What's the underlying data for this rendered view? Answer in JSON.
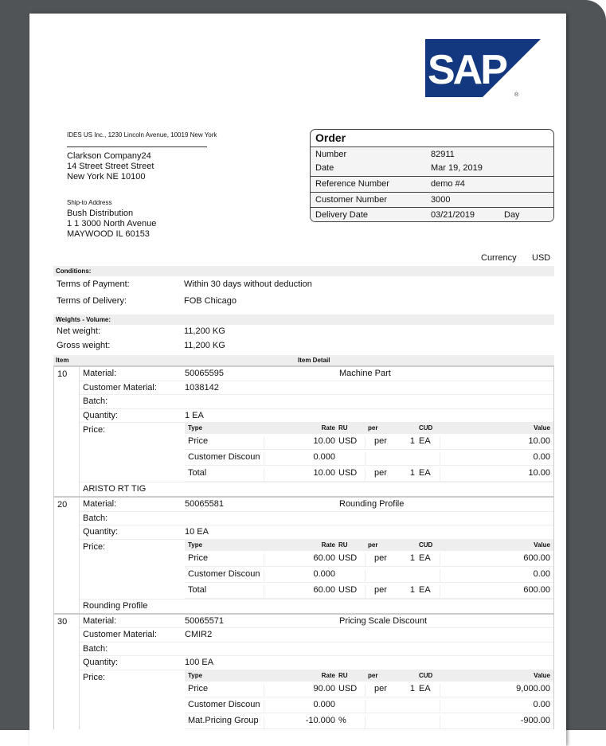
{
  "logo": {
    "text": "SAP",
    "brand_color": "#14387f"
  },
  "sender": "IDES US Inc., 1230 Lincoln Avenue, 10019 New York",
  "address": [
    "Clarkson Company24",
    "14 Street Street Street",
    "New York NE  10100"
  ],
  "ship_to": {
    "label": "Ship-to Address",
    "lines": [
      "Bush Distribution",
      "1 1 3000 North Avenue",
      "MAYWOOD IL  60153"
    ]
  },
  "order": {
    "title": "Order",
    "number_label": "Number",
    "number": "82911",
    "date_label": "Date",
    "date": "Mar 19, 2019",
    "reference_label": "Reference Number",
    "reference": "demo #4",
    "customer_label": "Customer Number",
    "customer": "3000",
    "delivery_label": "Delivery Date",
    "delivery": "03/21/2019",
    "delivery_unit": "Day"
  },
  "currency": {
    "label": "Currency",
    "value": "USD"
  },
  "conditions": {
    "header": "Conditions:",
    "payment_label": "Terms of Payment:",
    "payment": "Within  30 days without deduction",
    "delivery_label": "Terms of Delivery:",
    "delivery": "FOB   Chicago"
  },
  "weights": {
    "header": "Weights - Volume:",
    "net_label": "Net weight:",
    "net": "11,200  KG",
    "gross_label": "Gross weight:",
    "gross": "11,200  KG"
  },
  "items_header": {
    "item": "Item",
    "detail": "Item Detail"
  },
  "labels": {
    "material": "Material:",
    "customer_material": "Customer Material:",
    "batch": "Batch:",
    "quantity": "Quantity:",
    "price": "Price:"
  },
  "price_header": {
    "type": "Type",
    "rate": "Rate",
    "ru": "RU",
    "per": "per",
    "cud": "CUD",
    "value": "Value"
  },
  "items": [
    {
      "no": "10",
      "material": "50065595",
      "description": "Machine Part",
      "customer_material": "1038142",
      "quantity": "1  EA",
      "prices": [
        {
          "type": "Price",
          "rate": "10.00",
          "ru": "USD",
          "per": "per",
          "qty": "1",
          "unit": "EA",
          "value": "10.00"
        },
        {
          "type": "Customer Discoun",
          "rate": "0.000",
          "ru": "",
          "per": "",
          "qty": "",
          "unit": "",
          "value": "0.00"
        },
        {
          "type": "Total",
          "rate": "10.00",
          "ru": "USD",
          "per": "per",
          "qty": "1",
          "unit": "EA",
          "value": "10.00"
        }
      ],
      "footer": "ARISTO RT TIG"
    },
    {
      "no": "20",
      "material": "50065581",
      "description": "Rounding Profile",
      "quantity": "10  EA",
      "prices": [
        {
          "type": "Price",
          "rate": "60.00",
          "ru": "USD",
          "per": "per",
          "qty": "1",
          "unit": "EA",
          "value": "600.00"
        },
        {
          "type": "Customer Discoun",
          "rate": "0.000",
          "ru": "",
          "per": "",
          "qty": "",
          "unit": "",
          "value": "0.00"
        },
        {
          "type": "Total",
          "rate": "60.00",
          "ru": "USD",
          "per": "per",
          "qty": "1",
          "unit": "EA",
          "value": "600.00"
        }
      ],
      "footer": "Rounding Profile"
    },
    {
      "no": "30",
      "material": "50065571",
      "description": "Pricing Scale Discount",
      "customer_material": "CMIR2",
      "quantity": "100  EA",
      "prices": [
        {
          "type": "Price",
          "rate": "90.00",
          "ru": "USD",
          "per": "per",
          "qty": "1",
          "unit": "EA",
          "value": "9,000.00"
        },
        {
          "type": "Customer Discoun",
          "rate": "0.000",
          "ru": "",
          "per": "",
          "qty": "",
          "unit": "",
          "value": "0.00"
        },
        {
          "type": "Mat.Pricing Group",
          "rate": "-10.000",
          "ru": "%",
          "per": "",
          "qty": "",
          "unit": "",
          "value": "-900.00"
        }
      ]
    }
  ]
}
